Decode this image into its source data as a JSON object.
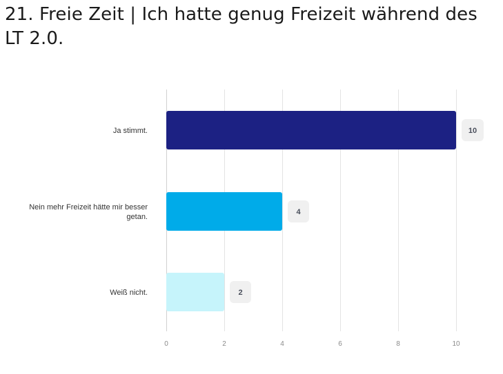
{
  "title": "21. Freie Zeit | Ich hatte genug Freizeit während des LT 2.0.",
  "chart_data": {
    "type": "bar",
    "orientation": "horizontal",
    "categories": [
      [
        "Ja stimmt."
      ],
      [
        "Nein mehr Freizeit hätte mir besser",
        "getan."
      ],
      [
        "Weiß nicht."
      ]
    ],
    "values": [
      10,
      4,
      2
    ],
    "colors": [
      "#1c2183",
      "#00abe9",
      "#c6f4fb"
    ],
    "xlim": [
      0,
      10
    ],
    "xticks": [
      0,
      2,
      4,
      6,
      8,
      10
    ],
    "grid": true,
    "data_labels": true
  }
}
